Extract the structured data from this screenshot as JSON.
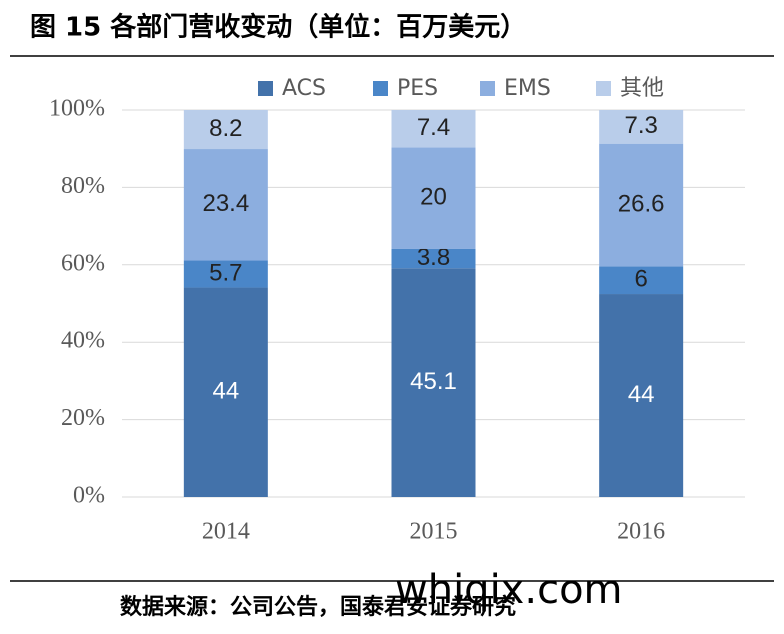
{
  "chart_data": {
    "type": "bar",
    "stacked": "percent",
    "title": "图 15 各部门营收变动（单位：百万美元）",
    "source": "数据来源：公司公告，国泰君安证券研究",
    "watermark": "whiqix.com",
    "categories": [
      "2014",
      "2015",
      "2016"
    ],
    "series": [
      {
        "name": "ACS",
        "color": "#4372aa",
        "values": [
          44,
          45.1,
          44
        ]
      },
      {
        "name": "PES",
        "color": "#4a86c8",
        "values": [
          5.7,
          3.8,
          6
        ]
      },
      {
        "name": "EMS",
        "color": "#8caedf",
        "values": [
          23.4,
          20,
          26.6
        ]
      },
      {
        "name": "其他",
        "color": "#b9cdea",
        "values": [
          8.2,
          7.4,
          7.3
        ]
      }
    ],
    "ylim": [
      0,
      100
    ],
    "yticks": [
      {
        "value": 0,
        "label": "0%"
      },
      {
        "value": 20,
        "label": "20%"
      },
      {
        "value": 40,
        "label": "40%"
      },
      {
        "value": 60,
        "label": "60%"
      },
      {
        "value": 80,
        "label": "80%"
      },
      {
        "value": 100,
        "label": "100%"
      }
    ],
    "grid": true,
    "legend": "top"
  }
}
